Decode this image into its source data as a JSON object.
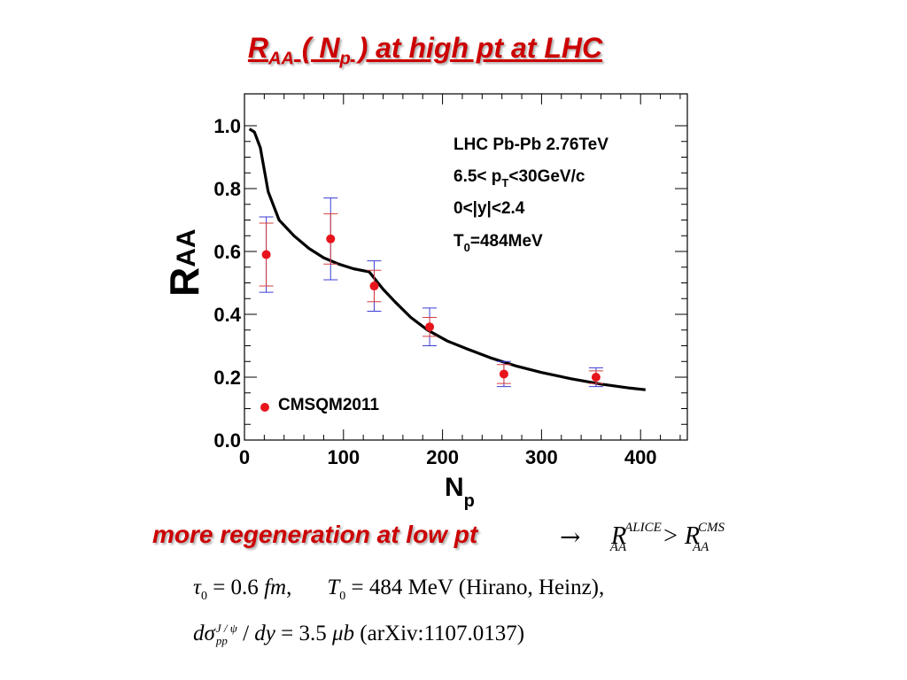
{
  "slide": {
    "title_main": "R",
    "title_sub1": "AA",
    "title_mid": " ( N",
    "title_sub2": "p",
    "title_end": " ) at high pt at LHC",
    "regeneration_text": "more regeneration at low pt",
    "arrow": "→",
    "ineq_lhs_base": "R",
    "ineq_lhs_sup": "ALICE",
    "ineq_lhs_sub": "AA",
    "ineq_op": ">",
    "ineq_rhs_base": "R",
    "ineq_rhs_sup": "CMS",
    "ineq_rhs_sub": "AA",
    "eq1_tau": "τ",
    "eq1_tau_sub": "0",
    "eq1_tau_val": " = 0.6 ",
    "eq1_fm": "fm",
    "eq1_comma": ",",
    "eq1_T": "T",
    "eq1_T_sub": "0",
    "eq1_T_val": " = 484  MeV (Hirano, Heinz),",
    "eq2_d": "dσ",
    "eq2_sup": "J / ψ",
    "eq2_sub": "pp",
    "eq2_rest": " / ",
    "eq2_dy": "dy",
    "eq2_val": " = 3.5  ",
    "eq2_mub": "μb",
    "eq2_ref": " (arXiv:1107.0137)"
  },
  "chart_data": {
    "type": "scatter",
    "xlabel": "N",
    "xlabel_sub": "p",
    "ylabel": "R",
    "ylabel_sub": "AA",
    "xlim": [
      0,
      440
    ],
    "ylim": [
      0,
      1.05
    ],
    "x_ticks": [
      0,
      100,
      200,
      300,
      400
    ],
    "x_tick_labels": [
      "0",
      "100",
      "200",
      "300",
      "400"
    ],
    "y_ticks": [
      0,
      0.2,
      0.4,
      0.6,
      0.8,
      1.0
    ],
    "y_tick_labels": [
      "0.0",
      "0.2",
      "0.4",
      "0.6",
      "0.8",
      "1.0"
    ],
    "annotations": [
      "LHC Pb-Pb 2.76TeV",
      "6.5< p",
      "T",
      "<30GeV/c",
      "0<|y|<2.4",
      "T",
      "0",
      "=484MeV"
    ],
    "legend": {
      "label": "CMSQM2011",
      "position": "bottom-left"
    },
    "colors": {
      "points": "#e8141c",
      "err_stat": "#d63c3c",
      "err_sys": "#3c3cd6",
      "curve": "#000000"
    },
    "series": [
      {
        "name": "CMSQM2011",
        "kind": "points",
        "x": [
          22,
          87,
          131,
          187,
          262,
          355
        ],
        "y": [
          0.59,
          0.64,
          0.49,
          0.36,
          0.21,
          0.2
        ],
        "err_stat": [
          0.1,
          0.08,
          0.05,
          0.03,
          0.03,
          0.02
        ],
        "err_sys": [
          0.12,
          0.13,
          0.08,
          0.06,
          0.04,
          0.03
        ]
      },
      {
        "kind": "curve",
        "x": [
          5,
          10,
          16,
          24,
          35,
          50,
          65,
          80,
          95,
          110,
          126,
          140,
          152,
          168,
          185,
          205,
          225,
          250,
          275,
          300,
          330,
          360,
          390,
          405
        ],
        "y": [
          0.99,
          0.98,
          0.93,
          0.79,
          0.7,
          0.65,
          0.61,
          0.58,
          0.56,
          0.545,
          0.535,
          0.48,
          0.44,
          0.39,
          0.35,
          0.315,
          0.29,
          0.26,
          0.235,
          0.215,
          0.195,
          0.178,
          0.165,
          0.16
        ]
      }
    ]
  }
}
